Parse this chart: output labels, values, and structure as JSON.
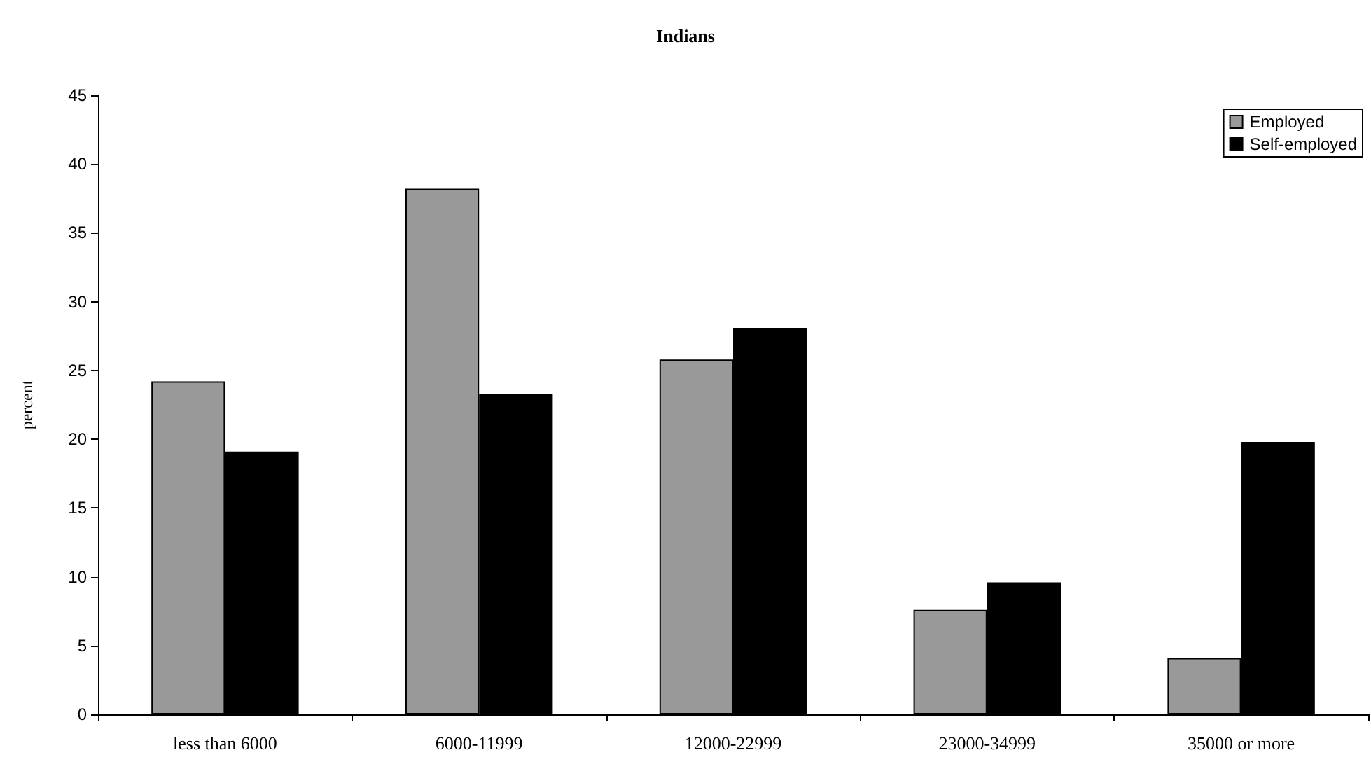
{
  "chart_data": {
    "type": "bar",
    "title": "Indians",
    "ylabel": "percent",
    "categories": [
      "less than 6000",
      "6000-11999",
      "12000-22999",
      "23000-34999",
      "35000 or more"
    ],
    "series": [
      {
        "name": "Employed",
        "color": "#999999",
        "values": [
          24.2,
          38.2,
          25.8,
          7.6,
          4.1
        ]
      },
      {
        "name": "Self-employed",
        "color": "#000000",
        "values": [
          19.1,
          23.3,
          28.1,
          9.6,
          19.8
        ]
      }
    ],
    "ylim": [
      0,
      45
    ],
    "yticks": [
      0,
      5,
      10,
      15,
      20,
      25,
      30,
      35,
      40,
      45
    ],
    "grid": false,
    "legend": "top right"
  }
}
